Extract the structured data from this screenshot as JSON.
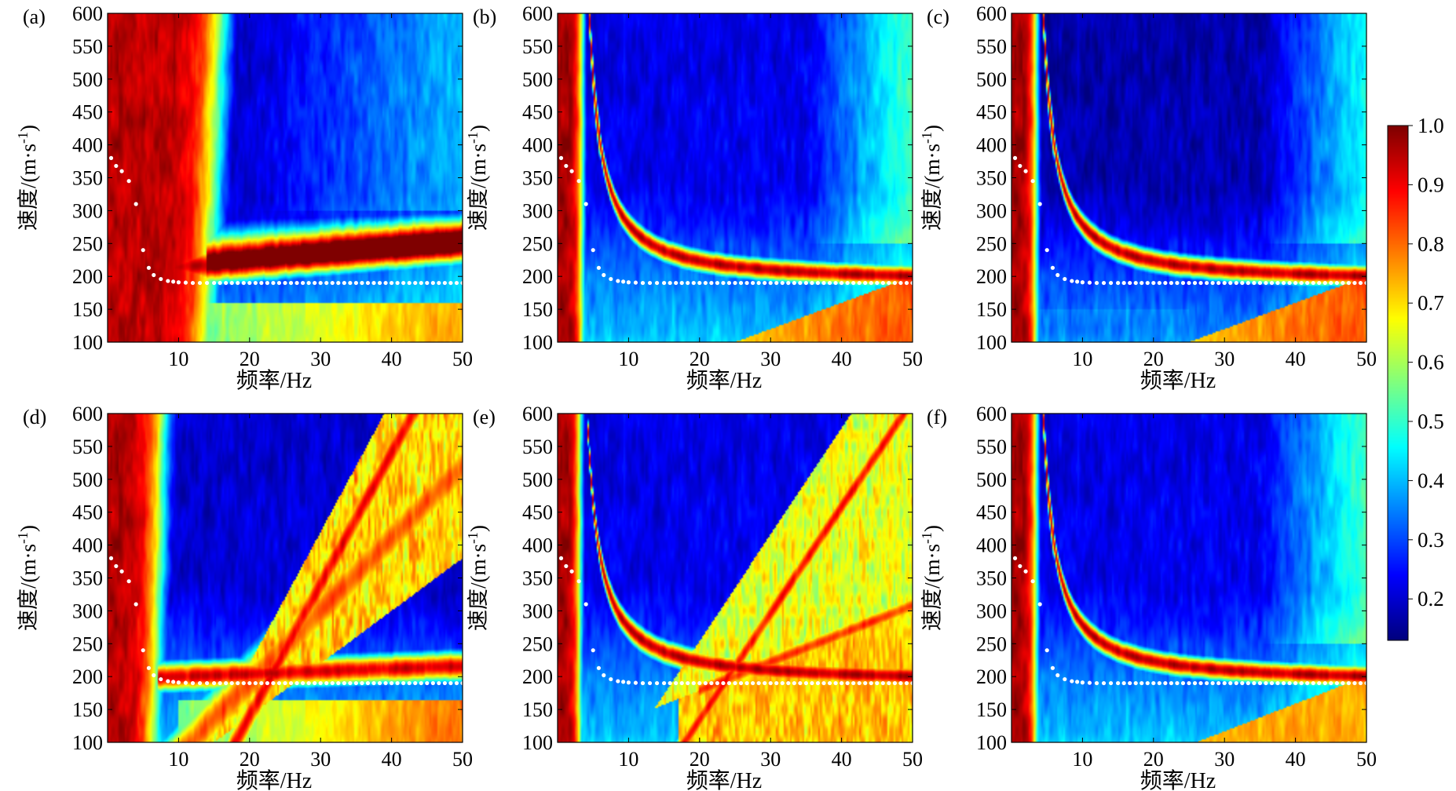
{
  "chart_data": {
    "type": "heatmap",
    "layout": "2x3 grid of panels sharing one colorbar",
    "xlabel": "频率/Hz",
    "ylabel": "速度/(m·s",
    "ylabel_sup": "-1",
    "ylabel_close": ")",
    "xlim": [
      0,
      50
    ],
    "ylim": [
      100,
      600
    ],
    "x_ticks": [
      10,
      20,
      30,
      40,
      50
    ],
    "y_ticks": [
      100,
      150,
      200,
      250,
      300,
      350,
      400,
      450,
      500,
      550,
      600
    ],
    "colormap": "jet",
    "colorbar": {
      "range": [
        0.13,
        1.0
      ],
      "ticks": [
        "1.0",
        "0.9",
        "0.8",
        "0.7",
        "0.6",
        "0.5",
        "0.4",
        "0.3",
        "0.2"
      ],
      "tick_values": [
        1.0,
        0.9,
        0.8,
        0.7,
        0.6,
        0.5,
        0.4,
        0.3,
        0.2
      ]
    },
    "reference_curve": {
      "style": "white dotted",
      "x": [
        0.5,
        1.2,
        2.0,
        3.0,
        4.0,
        5.0,
        5.8,
        6.5,
        7.5,
        8.5,
        10,
        12,
        15,
        20,
        25,
        30,
        35,
        40,
        45,
        50
      ],
      "y": [
        380,
        368,
        360,
        345,
        310,
        240,
        213,
        202,
        196,
        193,
        191,
        190,
        190,
        190,
        190,
        190,
        190,
        190,
        190,
        190
      ]
    },
    "panels": [
      {
        "label": "(a)",
        "variant": "a"
      },
      {
        "label": "(b)",
        "variant": "b"
      },
      {
        "label": "(c)",
        "variant": "c"
      },
      {
        "label": "(d)",
        "variant": "d"
      },
      {
        "label": "(e)",
        "variant": "e"
      },
      {
        "label": "(f)",
        "variant": "f"
      }
    ]
  }
}
